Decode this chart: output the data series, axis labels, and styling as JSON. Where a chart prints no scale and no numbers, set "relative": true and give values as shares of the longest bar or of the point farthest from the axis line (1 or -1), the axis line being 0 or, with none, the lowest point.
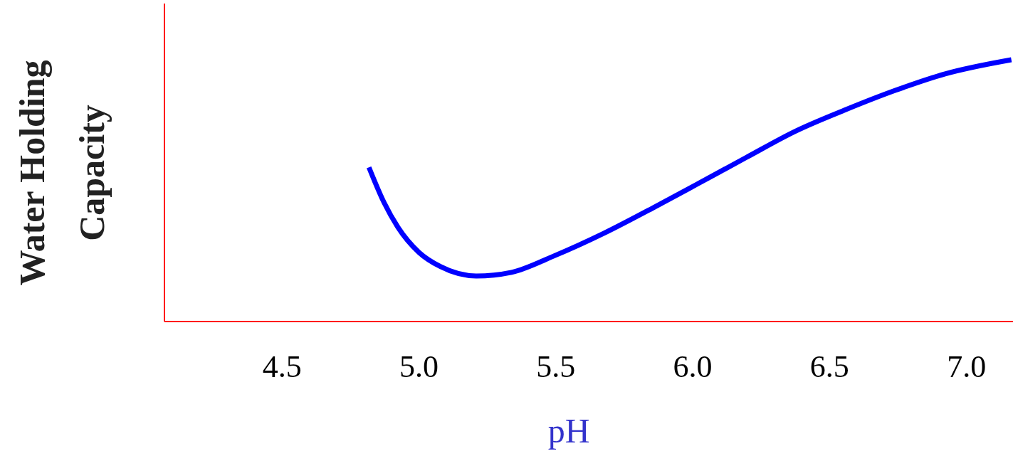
{
  "chart_data": {
    "type": "line",
    "xlabel": "pH",
    "ylabel": "Water Holding Capacity",
    "relative": true,
    "xlim": [
      4.07,
      7.17
    ],
    "xticks": [
      4.5,
      {
        "value": 5,
        "label": "5.0"
      },
      5.5,
      {
        "value": 6,
        "label": "6.0"
      },
      6.5,
      {
        "value": 7,
        "label": "7.0"
      }
    ],
    "series": [
      {
        "color": "#0000ff",
        "x": [
          4.817,
          4.872,
          4.923,
          5.0,
          5.078,
          5.209,
          5.338,
          5.494,
          5.677,
          5.858,
          6.013,
          6.196,
          6.377,
          6.558,
          6.74,
          6.922,
          7.164
        ],
        "values": [
          0.589,
          0.455,
          0.36,
          0.264,
          0.21,
          0.174,
          0.188,
          0.251,
          0.338,
          0.436,
          0.523,
          0.627,
          0.728,
          0.809,
          0.883,
          0.946,
          1.0
        ]
      }
    ],
    "grid": false,
    "marker": "none",
    "line_style": "solid"
  }
}
